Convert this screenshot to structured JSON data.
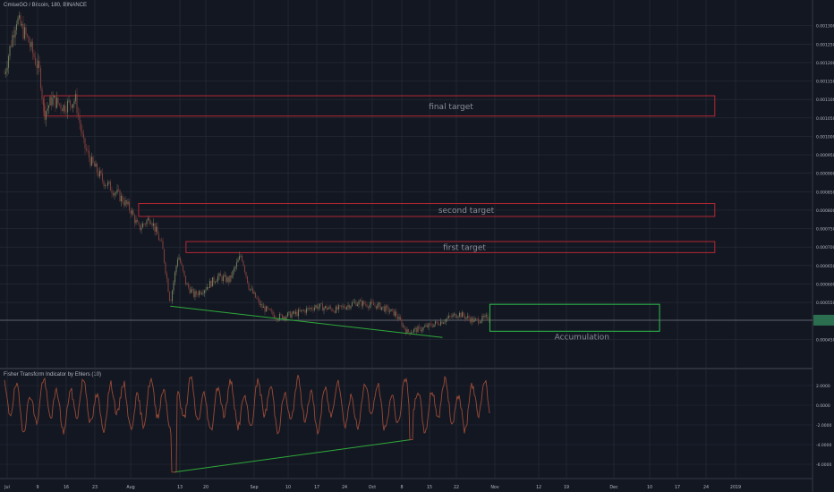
{
  "header": {
    "symbol_title": "OmiseGO / Bitcoin, 180, BINANCE"
  },
  "indicator": {
    "title": "Fisher Transform Indicator by Ehlers (10)",
    "yticks": [
      2.0,
      0.0,
      -2.0,
      -4.0,
      -6.0
    ],
    "ytick_labels": [
      "2.0000",
      "0.0000",
      "-2.0000",
      "-4.0000",
      "-6.0000"
    ],
    "ylim": [
      -7.0,
      3.0
    ]
  },
  "colors": {
    "background": "#131722",
    "grid": "#2a2e39",
    "up_candle": "#6d7a58",
    "down_candle": "#7a3f3a",
    "target_box": "#b22833",
    "accum_box": "#2ec14a",
    "trendline": "#2eaa3a",
    "fisher": "#9a4a35",
    "axis_text": "#b2b5be",
    "price_badge": "#2c6e50",
    "current_price_line": "#7a7d85"
  },
  "annotations": {
    "final_target": "final target",
    "second_target": "second target",
    "first_target": "first target",
    "accumulation": "Accumulation"
  },
  "chart_data": {
    "type": "candlestick",
    "title": "OmiseGO / Bitcoin, 180, BINANCE",
    "ylim": [
      0.0004,
      0.00135
    ],
    "yticks": [
      0.00045,
      0.0005,
      0.00055,
      0.0006,
      0.00065,
      0.0007,
      0.00075,
      0.0008,
      0.00085,
      0.0009,
      0.00095,
      0.001,
      0.00105,
      0.0011,
      0.00115,
      0.0012,
      0.00125,
      0.0013
    ],
    "ytick_labels": [
      "0.000450",
      "0.000500",
      "0.000550",
      "0.000600",
      "0.000650",
      "0.000700",
      "0.000750",
      "0.000800",
      "0.000850",
      "0.000900",
      "0.000950",
      "0.001000",
      "0.001050",
      "0.001100",
      "0.001150",
      "0.001200",
      "0.001250",
      "0.001300"
    ],
    "x_tick_labels": [
      "Jul",
      "9",
      "16",
      "23",
      "Aug",
      "13",
      "20",
      "Sep",
      "10",
      "17",
      "24",
      "Oct",
      "8",
      "15",
      "22",
      "Nov",
      "12",
      "19",
      "Dec",
      "10",
      "17",
      "24",
      "2019"
    ],
    "price_path": [
      [
        "Jul 1",
        0.00117
      ],
      [
        "Jul 4",
        0.00132
      ],
      [
        "Jul 7",
        0.00126
      ],
      [
        "Jul 10",
        0.00117
      ],
      [
        "Jul 11",
        0.00106
      ],
      [
        "Jul 13",
        0.0011
      ],
      [
        "Jul 16",
        0.00108
      ],
      [
        "Jul 19",
        0.0011
      ],
      [
        "Jul 21",
        0.00098
      ],
      [
        "Jul 23",
        0.00093
      ],
      [
        "Jul 26",
        0.00088
      ],
      [
        "Jul 30",
        0.00084
      ],
      [
        "Aug 2",
        0.0008
      ],
      [
        "Aug 4",
        0.00075
      ],
      [
        "Aug 7",
        0.00078
      ],
      [
        "Aug 10",
        0.0007
      ],
      [
        "Aug 12",
        0.00055
      ],
      [
        "Aug 14",
        0.00068
      ],
      [
        "Aug 16",
        0.0006
      ],
      [
        "Aug 18",
        0.00057
      ],
      [
        "Aug 21",
        0.00059
      ],
      [
        "Aug 24",
        0.00062
      ],
      [
        "Aug 27",
        0.00061
      ],
      [
        "Aug 30",
        0.00068
      ],
      [
        "Sep 1",
        0.00059
      ],
      [
        "Sep 4",
        0.00054
      ],
      [
        "Sep 8",
        0.00051
      ],
      [
        "Sep 13",
        0.00052
      ],
      [
        "Sep 18",
        0.00054
      ],
      [
        "Sep 23",
        0.00053
      ],
      [
        "Sep 28",
        0.00055
      ],
      [
        "Oct 4",
        0.00054
      ],
      [
        "Oct 8",
        0.00052
      ],
      [
        "Oct 11",
        0.00047
      ],
      [
        "Oct 15",
        0.00048
      ],
      [
        "Oct 20",
        0.0005
      ],
      [
        "Oct 24",
        0.00052
      ],
      [
        "Oct 28",
        0.0005
      ],
      [
        "Nov 1",
        0.00051
      ]
    ],
    "current_price": 0.000502,
    "boxes": [
      {
        "label": "final target",
        "from": "Jul 11",
        "to": "Dec 28",
        "price_low": 0.001055,
        "price_high": 0.00111
      },
      {
        "label": "second target",
        "from": "Aug 4",
        "to": "Dec 28",
        "price_low": 0.000783,
        "price_high": 0.000818
      },
      {
        "label": "first target",
        "from": "Aug 16",
        "to": "Dec 28",
        "price_low": 0.000685,
        "price_high": 0.000715
      },
      {
        "label": "Accumulation",
        "from": "Nov 1",
        "to": "Dec 14",
        "price_low": 0.000472,
        "price_high": 0.000545
      }
    ],
    "trendlines": [
      {
        "pane": "price",
        "from": [
          "Aug 12",
          0.00054
        ],
        "to": [
          "Oct 20",
          0.000455
        ]
      },
      {
        "pane": "indicator",
        "from": [
          "Aug 13",
          -6.8
        ],
        "to": [
          "Oct 12",
          -3.5
        ]
      }
    ]
  }
}
